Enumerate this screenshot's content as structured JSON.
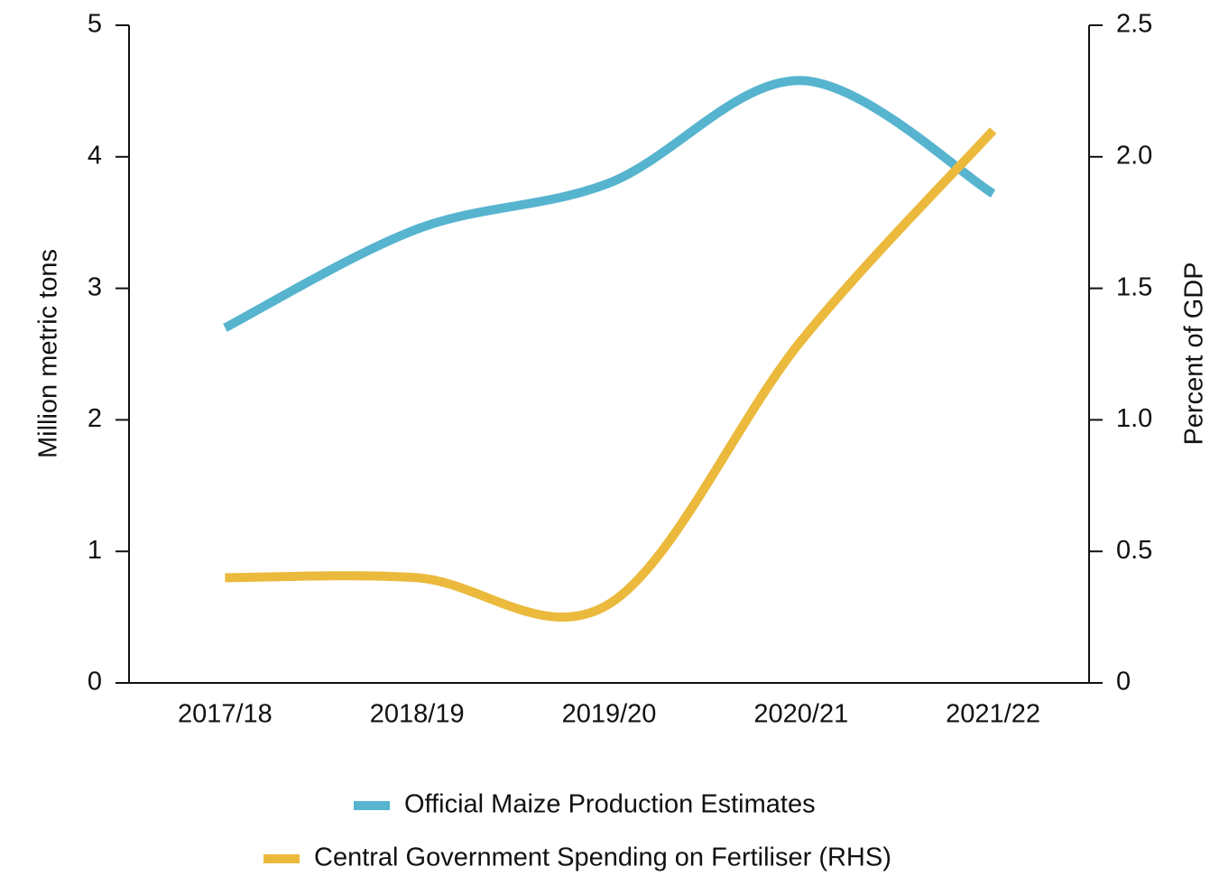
{
  "chart_data": {
    "type": "line",
    "categories": [
      "2017/18",
      "2018/19",
      "2019/20",
      "2020/21",
      "2021/22"
    ],
    "series": [
      {
        "name": "Official Maize Production Estimates",
        "color": "#56b4cf",
        "values": [
          2.7,
          3.45,
          3.8,
          4.58,
          3.72
        ]
      },
      {
        "name": "Central Government Spending on Fertiliser (RHS)",
        "color": "#ebb93c",
        "axis": "y2",
        "values": [
          0.4,
          0.4,
          0.3,
          1.3,
          2.1
        ]
      }
    ],
    "ylabel": "Million metric tons",
    "y2label": "Percent of GDP",
    "ylim": [
      0,
      5
    ],
    "yticks": [
      0,
      1,
      2,
      3,
      4,
      5
    ],
    "y2lim": [
      0,
      2.5
    ],
    "y2ticks": [
      0,
      0.5,
      {
        "value": 1,
        "label": "1.0"
      },
      1.5,
      {
        "value": 2,
        "label": "2.0"
      },
      2.5
    ],
    "legend": "bottom"
  }
}
